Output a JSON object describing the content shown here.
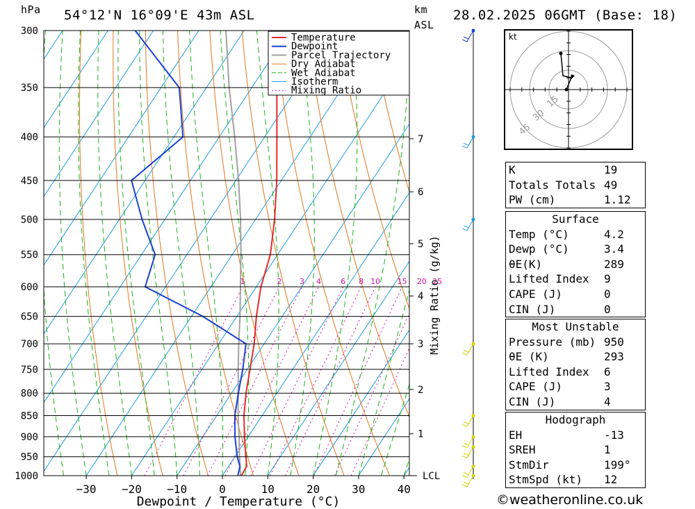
{
  "header": {
    "location": "54°12'N  16°09'E  43m  ASL",
    "datetime": "28.02.2025  06GMT  (Base: 18)",
    "left_unit": "hPa",
    "right_unit_top": "km",
    "right_unit_bottom": "ASL"
  },
  "chart_data": {
    "type": "skew-t log-p",
    "pressure_levels": [
      300,
      350,
      400,
      450,
      500,
      550,
      600,
      650,
      700,
      750,
      800,
      850,
      900,
      950,
      1000
    ],
    "x_ticks": [
      -30,
      -20,
      -10,
      0,
      10,
      20,
      30,
      40
    ],
    "xlabel": "Dewpoint / Temperature (°C)",
    "km_ticks": [
      {
        "p": 402,
        "km": "7"
      },
      {
        "p": 464,
        "km": "6"
      },
      {
        "p": 534,
        "km": "5"
      },
      {
        "p": 615,
        "km": "4"
      },
      {
        "p": 700,
        "km": "3"
      },
      {
        "p": 792,
        "km": "2"
      },
      {
        "p": 893,
        "km": "1"
      }
    ],
    "lcl": {
      "p": 1000,
      "label": "LCL"
    },
    "mixing_ratio_label": "Mixing Ratio (g/kg)",
    "mixing_ratios": [
      "1",
      "2",
      "3",
      "4",
      "6",
      "8",
      "10",
      "15",
      "20",
      "25"
    ],
    "legend": [
      "Temperature",
      "Dewpoint",
      "Parcel Trajectory",
      "Dry Adiabat",
      "Wet Adiabat",
      "Isotherm",
      "Mixing Ratio"
    ],
    "colors": {
      "temperature": "#e8292b",
      "dewpoint": "#1c3fd6",
      "parcel": "#a0a0a0",
      "dry": "#e0761e",
      "wet": "#19b419",
      "isotherm": "#1d9de0",
      "mixing": "#d010a0"
    },
    "temperature": [
      {
        "p": 1000,
        "t": 4.2
      },
      {
        "p": 975,
        "t": 4.0
      },
      {
        "p": 950,
        "t": 2.4
      },
      {
        "p": 900,
        "t": -0.8
      },
      {
        "p": 850,
        "t": -4.0
      },
      {
        "p": 800,
        "t": -6.8
      },
      {
        "p": 750,
        "t": -9.4
      },
      {
        "p": 700,
        "t": -12.2
      },
      {
        "p": 650,
        "t": -15.7
      },
      {
        "p": 600,
        "t": -19.0
      },
      {
        "p": 550,
        "t": -21.6
      },
      {
        "p": 500,
        "t": -25.8
      },
      {
        "p": 450,
        "t": -31.0
      },
      {
        "p": 400,
        "t": -37.3
      },
      {
        "p": 350,
        "t": -44.5
      },
      {
        "p": 300,
        "t": -51.5
      }
    ],
    "dewpoint": [
      {
        "p": 1000,
        "t": 3.4
      },
      {
        "p": 975,
        "t": 2.5
      },
      {
        "p": 950,
        "t": 0.5
      },
      {
        "p": 900,
        "t": -2.9
      },
      {
        "p": 850,
        "t": -6.0
      },
      {
        "p": 800,
        "t": -8.5
      },
      {
        "p": 750,
        "t": -11.0
      },
      {
        "p": 700,
        "t": -14.0
      },
      {
        "p": 650,
        "t": -27.5
      },
      {
        "p": 600,
        "t": -44.5
      },
      {
        "p": 550,
        "t": -47.0
      },
      {
        "p": 500,
        "t": -55.0
      },
      {
        "p": 450,
        "t": -63.0
      },
      {
        "p": 400,
        "t": -58.0
      },
      {
        "p": 350,
        "t": -66.0
      },
      {
        "p": 300,
        "t": -84.0
      }
    ],
    "parcel": [
      {
        "p": 1000,
        "t": 4.0
      },
      {
        "p": 950,
        "t": 1.0
      },
      {
        "p": 900,
        "t": -2.0
      },
      {
        "p": 850,
        "t": -5.3
      },
      {
        "p": 800,
        "t": -8.5
      },
      {
        "p": 750,
        "t": -12.0
      },
      {
        "p": 700,
        "t": -15.6
      },
      {
        "p": 650,
        "t": -19.3
      },
      {
        "p": 600,
        "t": -23.5
      },
      {
        "p": 550,
        "t": -28.1
      },
      {
        "p": 500,
        "t": -33.3
      },
      {
        "p": 450,
        "t": -39.4
      },
      {
        "p": 400,
        "t": -46.6
      },
      {
        "p": 350,
        "t": -55.0
      },
      {
        "p": 300,
        "t": -64.0
      }
    ],
    "wind_barbs": [
      {
        "p": 300,
        "color": "#1c3fd6"
      },
      {
        "p": 400,
        "color": "#1d9de0"
      },
      {
        "p": 500,
        "color": "#1d9de0"
      },
      {
        "p": 700,
        "color": "#d4d400"
      },
      {
        "p": 850,
        "color": "#d4d400"
      },
      {
        "p": 900,
        "color": "#d4d400"
      },
      {
        "p": 925,
        "color": "#d4d400"
      },
      {
        "p": 975,
        "color": "#d4d400"
      },
      {
        "p": 1000,
        "color": "#d4d400"
      }
    ]
  },
  "hodograph": {
    "unit": "kt",
    "ring_labels": [
      "15",
      "30",
      "45"
    ]
  },
  "indices": {
    "top": [
      {
        "label": "K",
        "value": "19"
      },
      {
        "label": "Totals Totals",
        "value": "49"
      },
      {
        "label": "PW (cm)",
        "value": "1.12"
      }
    ],
    "surface": {
      "title": "Surface",
      "rows": [
        {
          "label": "Temp (°C)",
          "value": "4.2"
        },
        {
          "label": "Dewp (°C)",
          "value": "3.4"
        },
        {
          "label": "θE(K)",
          "value": "289"
        },
        {
          "label": "Lifted Index",
          "value": "9"
        },
        {
          "label": "CAPE (J)",
          "value": "0"
        },
        {
          "label": "CIN (J)",
          "value": "0"
        }
      ]
    },
    "most_unstable": {
      "title": "Most Unstable",
      "rows": [
        {
          "label": "Pressure (mb)",
          "value": "950"
        },
        {
          "label": "θE (K)",
          "value": "293"
        },
        {
          "label": "Lifted Index",
          "value": "6"
        },
        {
          "label": "CAPE (J)",
          "value": "3"
        },
        {
          "label": "CIN (J)",
          "value": "4"
        }
      ]
    },
    "hodograph": {
      "title": "Hodograph",
      "rows": [
        {
          "label": "EH",
          "value": "-13"
        },
        {
          "label": "SREH",
          "value": "1"
        },
        {
          "label": "StmDir",
          "value": "199°"
        },
        {
          "label": "StmSpd (kt)",
          "value": "12"
        }
      ]
    }
  },
  "credit": "©weatheronline.co.uk"
}
